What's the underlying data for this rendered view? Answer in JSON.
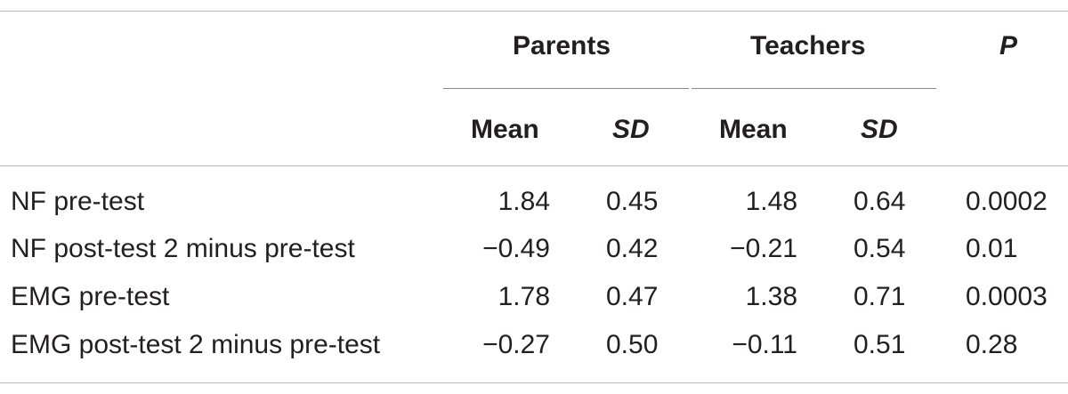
{
  "table": {
    "group_headers": {
      "parents": "Parents",
      "teachers": "Teachers",
      "p": "P"
    },
    "sub_headers": {
      "parents_mean": "Mean",
      "parents_sd": "SD",
      "teachers_mean": "Mean",
      "teachers_sd": "SD"
    },
    "rows": [
      {
        "label": "NF pre-test",
        "parents_mean": "1.84",
        "parents_sd": "0.45",
        "teachers_mean": "1.48",
        "teachers_sd": "0.64",
        "p": "0.0002"
      },
      {
        "label": "NF post-test 2 minus pre-test",
        "parents_mean": "−0.49",
        "parents_sd": "0.42",
        "teachers_mean": "−0.21",
        "teachers_sd": "0.54",
        "p": "0.01"
      },
      {
        "label": "EMG pre-test",
        "parents_mean": "1.78",
        "parents_sd": "0.47",
        "teachers_mean": "1.38",
        "teachers_sd": "0.71",
        "p": "0.0003"
      },
      {
        "label": "EMG post-test 2 minus pre-test",
        "parents_mean": "−0.27",
        "parents_sd": "0.50",
        "teachers_mean": "−0.11",
        "teachers_sd": "0.51",
        "p": "0.28"
      }
    ]
  }
}
